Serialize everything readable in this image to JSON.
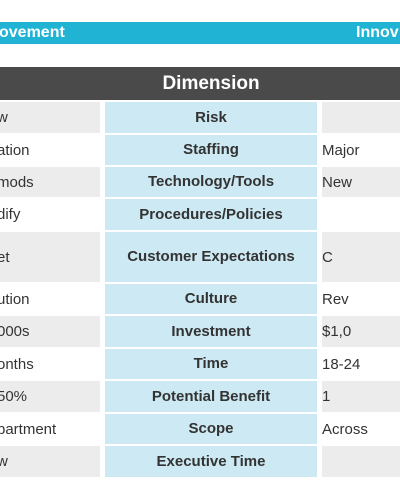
{
  "banner": {
    "left_label": "ovement",
    "right_label": "Innov"
  },
  "header": {
    "title": "Dimension"
  },
  "rows": [
    {
      "left": "w",
      "dimension": "Risk",
      "right": ""
    },
    {
      "left": "ation",
      "dimension": "Staffing",
      "right": "Major"
    },
    {
      "left": "mods",
      "dimension": "Technology/Tools",
      "right": "New"
    },
    {
      "left": "dify",
      "dimension": "Procedures/Policies",
      "right": ""
    },
    {
      "left": "et",
      "dimension": "Customer Expectations",
      "right": "C"
    },
    {
      "left": "ution",
      "dimension": "Culture",
      "right": "Rev"
    },
    {
      "left": "000s",
      "dimension": "Investment",
      "right": "$1,0"
    },
    {
      "left": "onths",
      "dimension": "Time",
      "right": "18-24"
    },
    {
      "left": "50%",
      "dimension": "Potential Benefit",
      "right": "1"
    },
    {
      "left": "partment",
      "dimension": "Scope",
      "right": "Across"
    },
    {
      "left": "w",
      "dimension": "Executive Time",
      "right": ""
    }
  ]
}
